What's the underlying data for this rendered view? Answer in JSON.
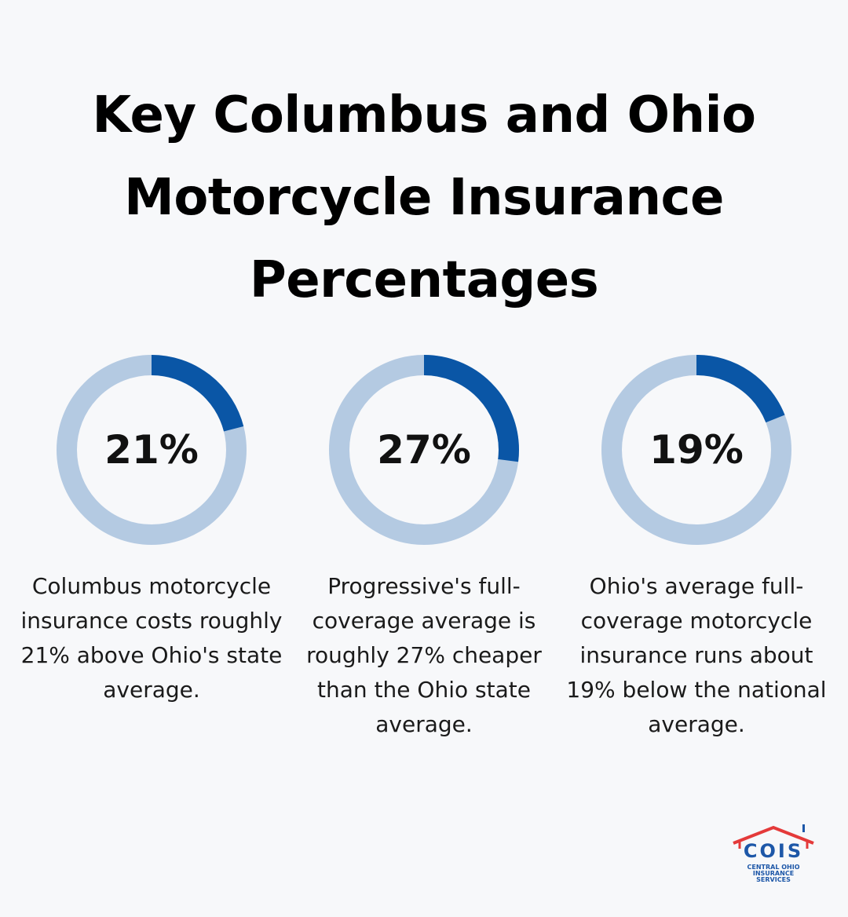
{
  "title": "Key Columbus and Ohio Motorcycle Insurance Percentages",
  "colors": {
    "ring_track": "#b4cae2",
    "ring_fill": "#0a56a6",
    "logo_roof": "#e43a3a",
    "logo_text": "#1d57a8"
  },
  "chart_data": [
    {
      "type": "pie",
      "value": 21,
      "label": "21%",
      "description": "Columbus motorcycle insurance costs roughly 21% above Ohio's state average."
    },
    {
      "type": "pie",
      "value": 27,
      "label": "27%",
      "description": "Progressive's full-coverage average is roughly 27% cheaper than the Ohio state average."
    },
    {
      "type": "pie",
      "value": 19,
      "label": "19%",
      "description": "Ohio's average full-coverage motorcycle insurance runs about 19% below the national average."
    }
  ],
  "logo": {
    "mark": "COIS",
    "line1": "CENTRAL OHIO",
    "line2": "INSURANCE",
    "line3": "SERVICES"
  }
}
